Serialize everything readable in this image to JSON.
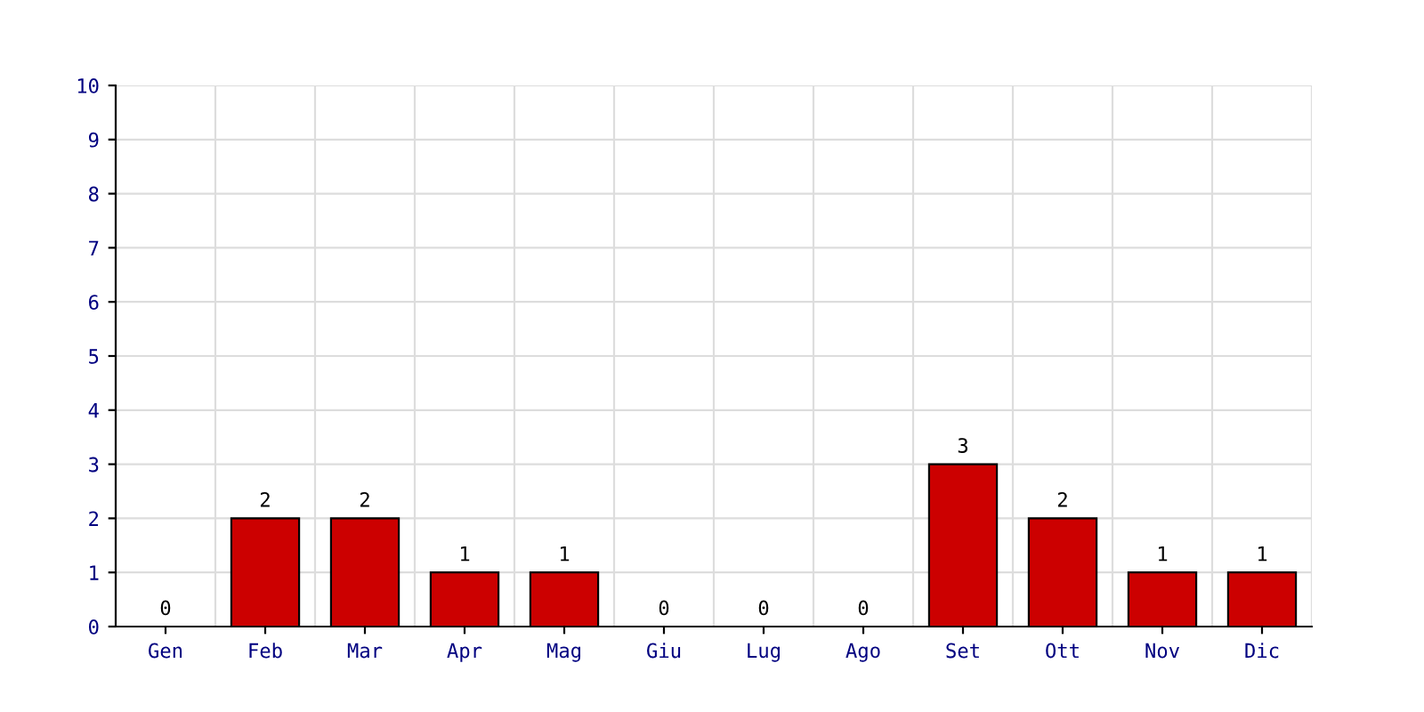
{
  "chart_data": {
    "type": "bar",
    "categories": [
      "Gen",
      "Feb",
      "Mar",
      "Apr",
      "Mag",
      "Giu",
      "Lug",
      "Ago",
      "Set",
      "Ott",
      "Nov",
      "Dic"
    ],
    "values": [
      0,
      2,
      2,
      1,
      1,
      0,
      0,
      0,
      3,
      2,
      1,
      1
    ],
    "color": "#cc0000",
    "ylim": [
      0,
      10
    ],
    "yticks": [
      0,
      1,
      2,
      3,
      4,
      5,
      6,
      7,
      8,
      9,
      10
    ],
    "grid": true,
    "data_labels": true
  }
}
